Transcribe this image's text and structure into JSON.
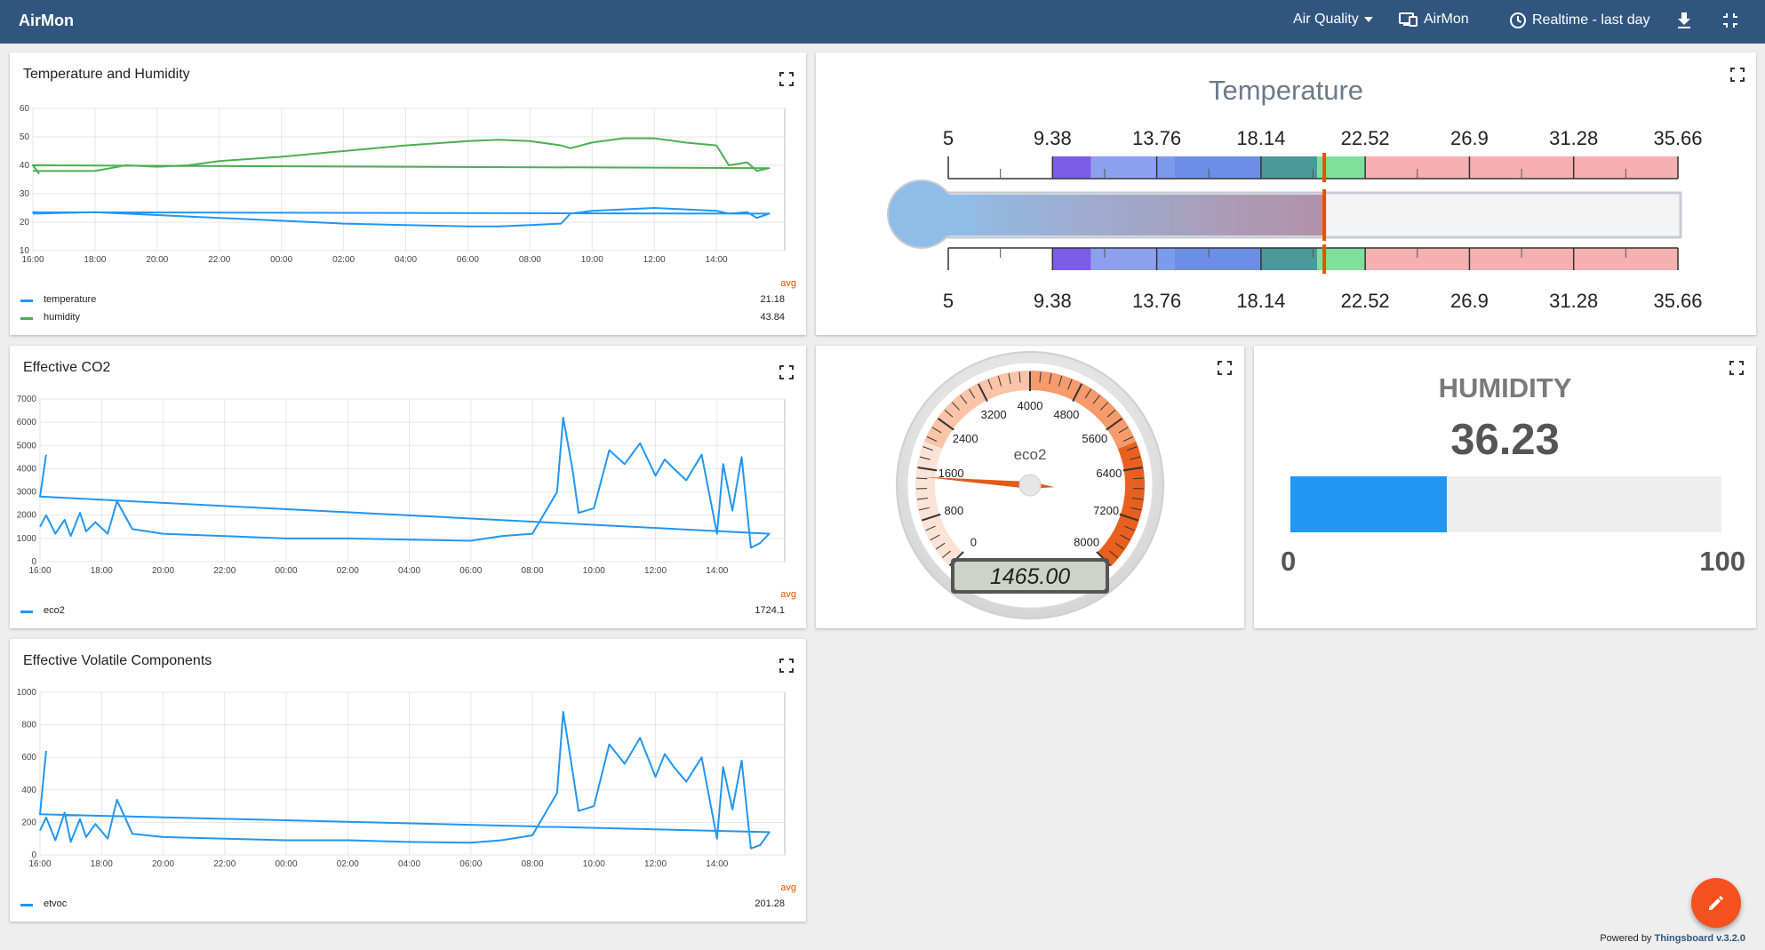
{
  "topbar": {
    "title": "AirMon",
    "dashboard_select": "Air Quality",
    "entity_label": "AirMon",
    "timewindow_label": "Realtime - last day"
  },
  "footer": {
    "powered_by": "Powered by",
    "brand": "Thingsboard v.3.2.0"
  },
  "charts": [
    {
      "title": "Temperature and Humidity",
      "legend_header": "avg",
      "legend": [
        {
          "name": "temperature",
          "avg": "21.18",
          "color": "#2196f3"
        },
        {
          "name": "humidity",
          "avg": "43.84",
          "color": "#4caf50"
        }
      ]
    },
    {
      "title": "Effective CO2",
      "legend_header": "avg",
      "legend": [
        {
          "name": "eco2",
          "avg": "1724.1",
          "color": "#2196f3"
        }
      ]
    },
    {
      "title": "Effective Volatile Components",
      "legend_header": "avg",
      "legend": [
        {
          "name": "etvoc",
          "avg": "201.28",
          "color": "#2196f3"
        }
      ]
    }
  ],
  "chart_data": [
    {
      "type": "line",
      "title": "Temperature and Humidity",
      "x_ticks": [
        "18:00",
        "20:00",
        "22:00",
        "00:00",
        "02:00",
        "04:00",
        "06:00",
        "08:00",
        "10:00",
        "12:00",
        "14:00",
        "16:00"
      ],
      "x_hours": [
        16.0,
        18,
        19,
        20,
        21,
        22,
        0,
        2,
        4,
        6,
        7,
        8,
        9,
        9.3,
        10,
        11,
        12,
        13,
        14,
        14.4,
        15,
        15.3,
        15.7,
        16,
        16.2
      ],
      "y_ticks": [
        "10",
        "20",
        "30",
        "40",
        "50",
        "60"
      ],
      "ylim": [
        10,
        60
      ],
      "series": [
        {
          "name": "temperature",
          "color": "#2196f3",
          "values": [
            23,
            23.5,
            23,
            22.5,
            22,
            21.5,
            20.5,
            19.5,
            19,
            18.5,
            18.5,
            19,
            19.5,
            23,
            24,
            24.5,
            25,
            24.5,
            24,
            23,
            23.5,
            21.5,
            23,
            23.5,
            23.5
          ]
        },
        {
          "name": "humidity",
          "color": "#4caf50",
          "values": [
            38,
            38,
            40,
            39.5,
            40,
            41.5,
            43,
            45,
            47,
            48.5,
            49,
            48.5,
            47,
            46,
            48,
            49.5,
            49.5,
            48,
            47,
            40,
            41,
            38,
            39,
            40,
            37
          ]
        }
      ]
    },
    {
      "type": "line",
      "title": "Effective CO2",
      "x_ticks": [
        "18:00",
        "20:00",
        "22:00",
        "00:00",
        "02:00",
        "04:00",
        "06:00",
        "08:00",
        "10:00",
        "12:00",
        "14:00",
        "16:00"
      ],
      "x_hours": [
        16.0,
        16.2,
        16.5,
        16.8,
        17,
        17.3,
        17.5,
        17.8,
        18.2,
        18.5,
        19,
        20,
        22,
        0,
        2,
        4,
        6,
        7,
        8,
        8.8,
        9,
        9.3,
        9.5,
        10,
        10.5,
        11,
        11.5,
        12,
        12.3,
        12.6,
        13,
        13.5,
        14,
        14.2,
        14.5,
        14.8,
        15.1,
        15.4,
        15.7,
        16,
        16.2
      ],
      "y_ticks": [
        "0",
        "1000",
        "2000",
        "3000",
        "4000",
        "5000",
        "6000",
        "7000"
      ],
      "ylim": [
        0,
        7000
      ],
      "series": [
        {
          "name": "eco2",
          "color": "#2196f3",
          "values": [
            1500,
            2000,
            1200,
            1800,
            1100,
            2100,
            1300,
            1700,
            1200,
            2600,
            1400,
            1200,
            1100,
            1000,
            1000,
            950,
            900,
            1100,
            1200,
            3000,
            6200,
            4000,
            2100,
            2300,
            4800,
            4200,
            5100,
            3700,
            4400,
            4000,
            3500,
            4600,
            1200,
            4200,
            2200,
            4500,
            600,
            800,
            1200,
            2800,
            4600
          ]
        }
      ]
    },
    {
      "type": "line",
      "title": "Effective Volatile Components",
      "x_ticks": [
        "18:00",
        "20:00",
        "22:00",
        "00:00",
        "02:00",
        "04:00",
        "06:00",
        "08:00",
        "10:00",
        "12:00",
        "14:00",
        "16:00"
      ],
      "x_hours": [
        16.0,
        16.2,
        16.5,
        16.8,
        17,
        17.3,
        17.5,
        17.8,
        18.2,
        18.5,
        19,
        20,
        22,
        0,
        2,
        4,
        6,
        7,
        8,
        8.8,
        9,
        9.3,
        9.5,
        10,
        10.5,
        11,
        11.5,
        12,
        12.3,
        12.6,
        13,
        13.5,
        14,
        14.2,
        14.5,
        14.8,
        15.1,
        15.4,
        15.7,
        16,
        16.2
      ],
      "y_ticks": [
        "0",
        "200",
        "400",
        "600",
        "800",
        "1000"
      ],
      "ylim": [
        0,
        1000
      ],
      "series": [
        {
          "name": "etvoc",
          "color": "#2196f3",
          "values": [
            150,
            230,
            90,
            260,
            80,
            220,
            110,
            190,
            100,
            340,
            130,
            110,
            100,
            90,
            90,
            80,
            75,
            90,
            120,
            380,
            880,
            520,
            270,
            300,
            680,
            560,
            720,
            480,
            620,
            540,
            450,
            600,
            100,
            540,
            280,
            580,
            40,
            60,
            140,
            250,
            640
          ]
        }
      ]
    }
  ],
  "temperature_gauge": {
    "title": "Temperature",
    "ticks": [
      "5",
      "9.38",
      "13.76",
      "18.14",
      "22.52",
      "26.9",
      "31.28",
      "35.66"
    ],
    "min": 5,
    "max": 35.66,
    "value": 20.8,
    "bands": [
      {
        "from": 9.38,
        "to": 11.0,
        "color": "#7b5ce6"
      },
      {
        "from": 11.0,
        "to": 13.76,
        "color": "#8da0f0"
      },
      {
        "from": 13.76,
        "to": 14.5,
        "color": "#7c9bef"
      },
      {
        "from": 14.5,
        "to": 18.14,
        "color": "#6d8ee6"
      },
      {
        "from": 18.14,
        "to": 20.5,
        "color": "#4a9a9a"
      },
      {
        "from": 20.5,
        "to": 22.52,
        "color": "#7fe09c"
      },
      {
        "from": 22.52,
        "to": 35.66,
        "color": "#f6b0b0"
      }
    ]
  },
  "eco2_gauge": {
    "label": "eco2",
    "ticks": [
      "0",
      "800",
      "1600",
      "2400",
      "3200",
      "4000",
      "4800",
      "5600",
      "6400",
      "7200",
      "8000"
    ],
    "min": 0,
    "max": 8000,
    "value": 1465,
    "display": "1465.00"
  },
  "humidity_card": {
    "title": "HUMIDITY",
    "value": "36.23",
    "fraction": 0.3623,
    "min_label": "0",
    "max_label": "100",
    "bar_color": "#2196f3"
  },
  "icons": {
    "dropdown": "caret-down-icon",
    "entity": "devices-icon",
    "clock": "clock-icon",
    "download": "download-icon",
    "fullscreen_exit": "fullscreen-exit-icon",
    "expand": "fullscreen-icon",
    "edit": "pencil-icon"
  }
}
